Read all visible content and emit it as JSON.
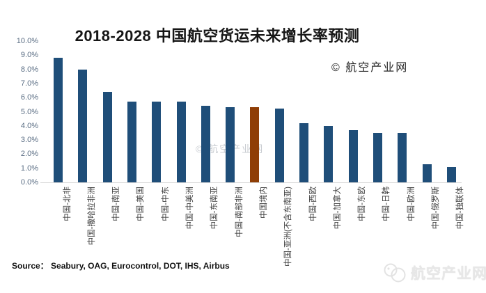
{
  "header": {
    "title": "2018-2028 中国航空货运未来增长率预测",
    "watermark": "© 航空产业网"
  },
  "watermark_center": "© 航空产业网",
  "footer": {
    "source": "Source： Seabury, OAG, Eurocontrol, DOT, IHS, Airbus",
    "logo_text": "航空产业网"
  },
  "colors": {
    "bar": "#1F4E79",
    "bar_highlight": "#8F3E06",
    "axis_line": "#D9D9D9",
    "ytick_text": "#5B6E84",
    "xtick_text": "#3F3F3F"
  },
  "chart_data": {
    "type": "bar",
    "title": "2018-2028 中国航空货运未来增长率预测",
    "unit": "%",
    "categories": [
      "中国-北非",
      "中国-撒哈拉非洲",
      "中国-南亚",
      "中国-美国",
      "中国-中东",
      "中国-中美洲",
      "中国-东南亚",
      "中国-南部非洲",
      "中国境内",
      "中国-亚洲(不含东南亚)",
      "中国-西欧",
      "中国-加拿大",
      "中国-东欧",
      "中国-日韩",
      "中国-欧洲",
      "中国-俄罗斯",
      "中国-独联体"
    ],
    "values": [
      8.8,
      8.0,
      6.4,
      5.7,
      5.7,
      5.7,
      5.4,
      5.3,
      5.3,
      5.2,
      4.2,
      4.0,
      3.7,
      3.5,
      3.5,
      1.3,
      1.1
    ],
    "highlight_index": 8,
    "highlight_category": "中国境内",
    "xlabel": "",
    "ylabel": "",
    "ylim": [
      0,
      10
    ],
    "ytick_labels": [
      "10.0%",
      "9.0%",
      "8.0%",
      "7.0%",
      "6.0%",
      "5.0%",
      "4.0%",
      "3.0%",
      "2.0%",
      "1.0%",
      "0.0%"
    ],
    "grid": false,
    "legend": false
  }
}
